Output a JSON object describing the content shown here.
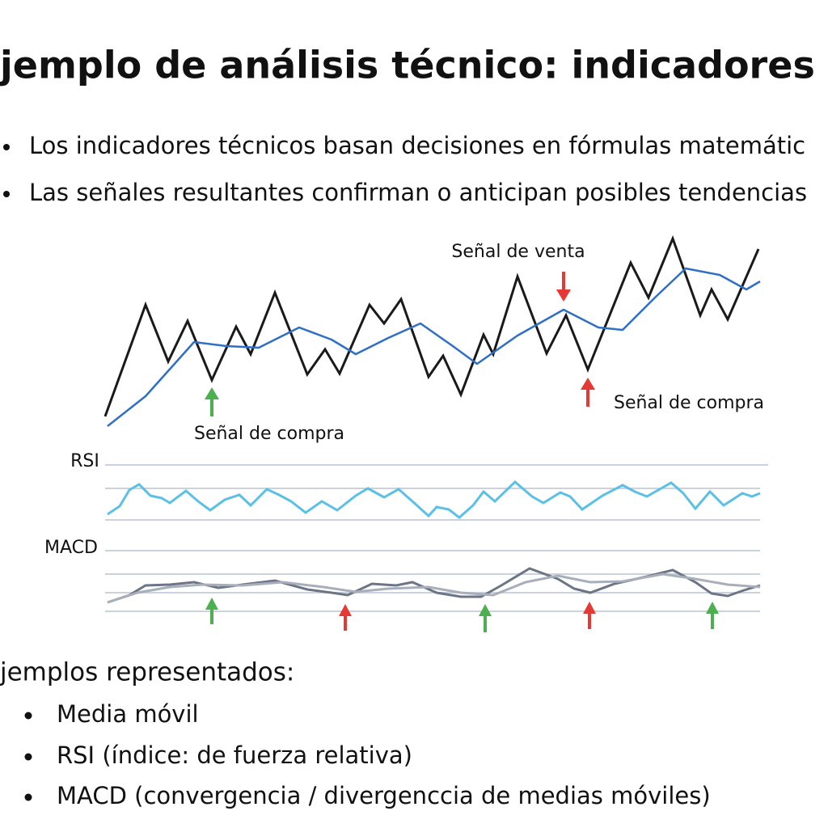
{
  "title": "jemplo de análisis técnico: indicadores",
  "bullets": [
    "Los indicadores técnicos basan decisiones en fórmulas matemátic",
    "Las señales resultantes confirman o anticipan posibles tendencias"
  ],
  "annotations": [
    "Señal de venta",
    "Señal de compra",
    "Señal de compra"
  ],
  "panels": [
    "RSI",
    "MACD"
  ],
  "examples": {
    "heading": "jemplos representados:",
    "items": [
      "Media móvil",
      "RSI (índice: de fuerza relativa)",
      "MACD (convergencia / divergenccia de medias móviles)"
    ]
  }
}
